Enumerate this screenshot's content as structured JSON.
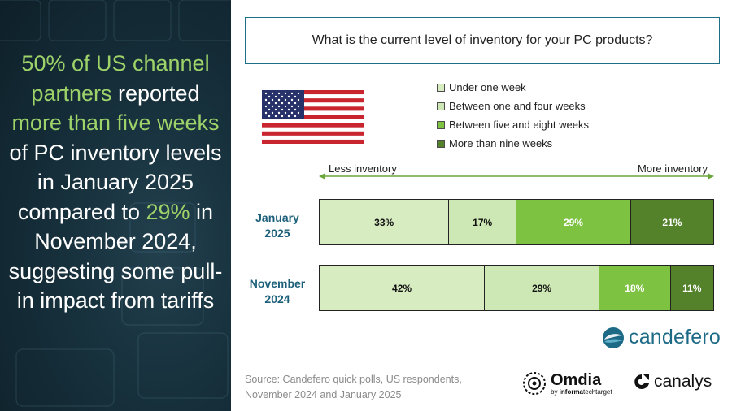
{
  "headline": {
    "part1_highlight": "50% of US channel partners",
    "part2": " reported ",
    "part3_highlight": "more than five weeks",
    "part4": " of PC inventory levels in January 2025 compared to ",
    "part5_highlight": "29%",
    "part6": " in November 2024, suggesting some pull-in impact from tariffs"
  },
  "question": "What is the current level of inventory for your PC products?",
  "colors": {
    "under_one_week": "#d8ecc2",
    "one_to_four": "#cde8b4",
    "five_to_eight": "#7ec242",
    "more_than_nine": "#53822b",
    "accent_blue": "#1b5f7a",
    "headline_green": "#9ed36a"
  },
  "chart_data": {
    "type": "bar",
    "orientation": "horizontal",
    "stacked": true,
    "title": "What is the current level of inventory for your PC products?",
    "axis_left_label": "Less inventory",
    "axis_right_label": "More inventory",
    "categories": [
      "January 2025",
      "November 2024"
    ],
    "category_label_lines": [
      [
        "January",
        "2025"
      ],
      [
        "November",
        "2024"
      ]
    ],
    "series": [
      {
        "name": "Under one week",
        "values": [
          33,
          42
        ],
        "value_labels": [
          "33%",
          "42%"
        ]
      },
      {
        "name": "Between one and four weeks",
        "values": [
          17,
          29
        ],
        "value_labels": [
          "17%",
          "29%"
        ]
      },
      {
        "name": "Between five and eight weeks",
        "values": [
          29,
          18
        ],
        "value_labels": [
          "29%",
          "18%"
        ]
      },
      {
        "name": "More than nine weeks",
        "values": [
          21,
          11
        ],
        "value_labels": [
          "21%",
          "11%"
        ]
      }
    ],
    "xlim": [
      0,
      100
    ]
  },
  "source": {
    "line1": "Source: Candefero quick polls, US respondents,",
    "line2": "November 2024 and January 2025"
  },
  "logos": {
    "candefero": "candefero",
    "omdia": "Omdia",
    "omdia_sub_prefix": "by ",
    "omdia_sub_bold": "informa",
    "omdia_sub_rest": "techtarget",
    "canalys": "canalys"
  },
  "icons": {
    "flag": "us-flag-icon",
    "candefero": "candefero-logo-icon",
    "omdia": "omdia-logo-icon",
    "canalys": "canalys-logo-icon"
  }
}
